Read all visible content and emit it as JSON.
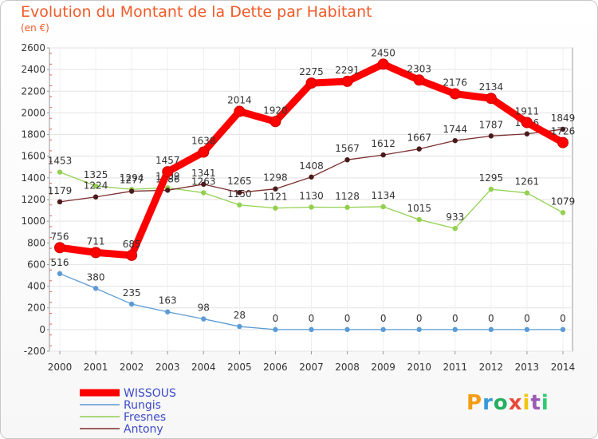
{
  "title": "Evolution du Montant de la Dette par Habitant",
  "unit": "(en €)",
  "logo": "Proxiti",
  "chart_data": {
    "type": "line",
    "x": [
      "2000",
      "2001",
      "2002",
      "2003",
      "2004",
      "2005",
      "2006",
      "2007",
      "2008",
      "2009",
      "2010",
      "2011",
      "2012",
      "2013",
      "2014"
    ],
    "ylim": [
      -200,
      2600
    ],
    "yticks": [
      -200,
      0,
      200,
      400,
      600,
      800,
      1000,
      1200,
      1400,
      1600,
      1800,
      2000,
      2200,
      2400,
      2600
    ],
    "grid": true,
    "legend_position": "bottom-left",
    "series": [
      {
        "name": "WISSOUS",
        "color": "#ff0000",
        "width": "thick",
        "values": [
          756,
          711,
          685,
          1457,
          1638,
          2014,
          1920,
          2275,
          2291,
          2450,
          2303,
          2176,
          2134,
          1911,
          1726
        ]
      },
      {
        "name": "Rungis",
        "color": "#5b9bd5",
        "width": "thin",
        "values": [
          516,
          380,
          235,
          163,
          98,
          28,
          0,
          0,
          0,
          0,
          0,
          0,
          0,
          0,
          0
        ]
      },
      {
        "name": "Fresnes",
        "color": "#92d050",
        "width": "thin",
        "values": [
          1453,
          1325,
          1294,
          1309,
          1263,
          1150,
          1121,
          1130,
          1128,
          1134,
          1015,
          933,
          1295,
          1261,
          1079
        ]
      },
      {
        "name": "Antony",
        "color": "#7b2e2e",
        "width": "thin",
        "values": [
          1179,
          1224,
          1277,
          1286,
          1341,
          1265,
          1298,
          1408,
          1567,
          1612,
          1667,
          1744,
          1787,
          1806,
          1849
        ]
      }
    ]
  }
}
